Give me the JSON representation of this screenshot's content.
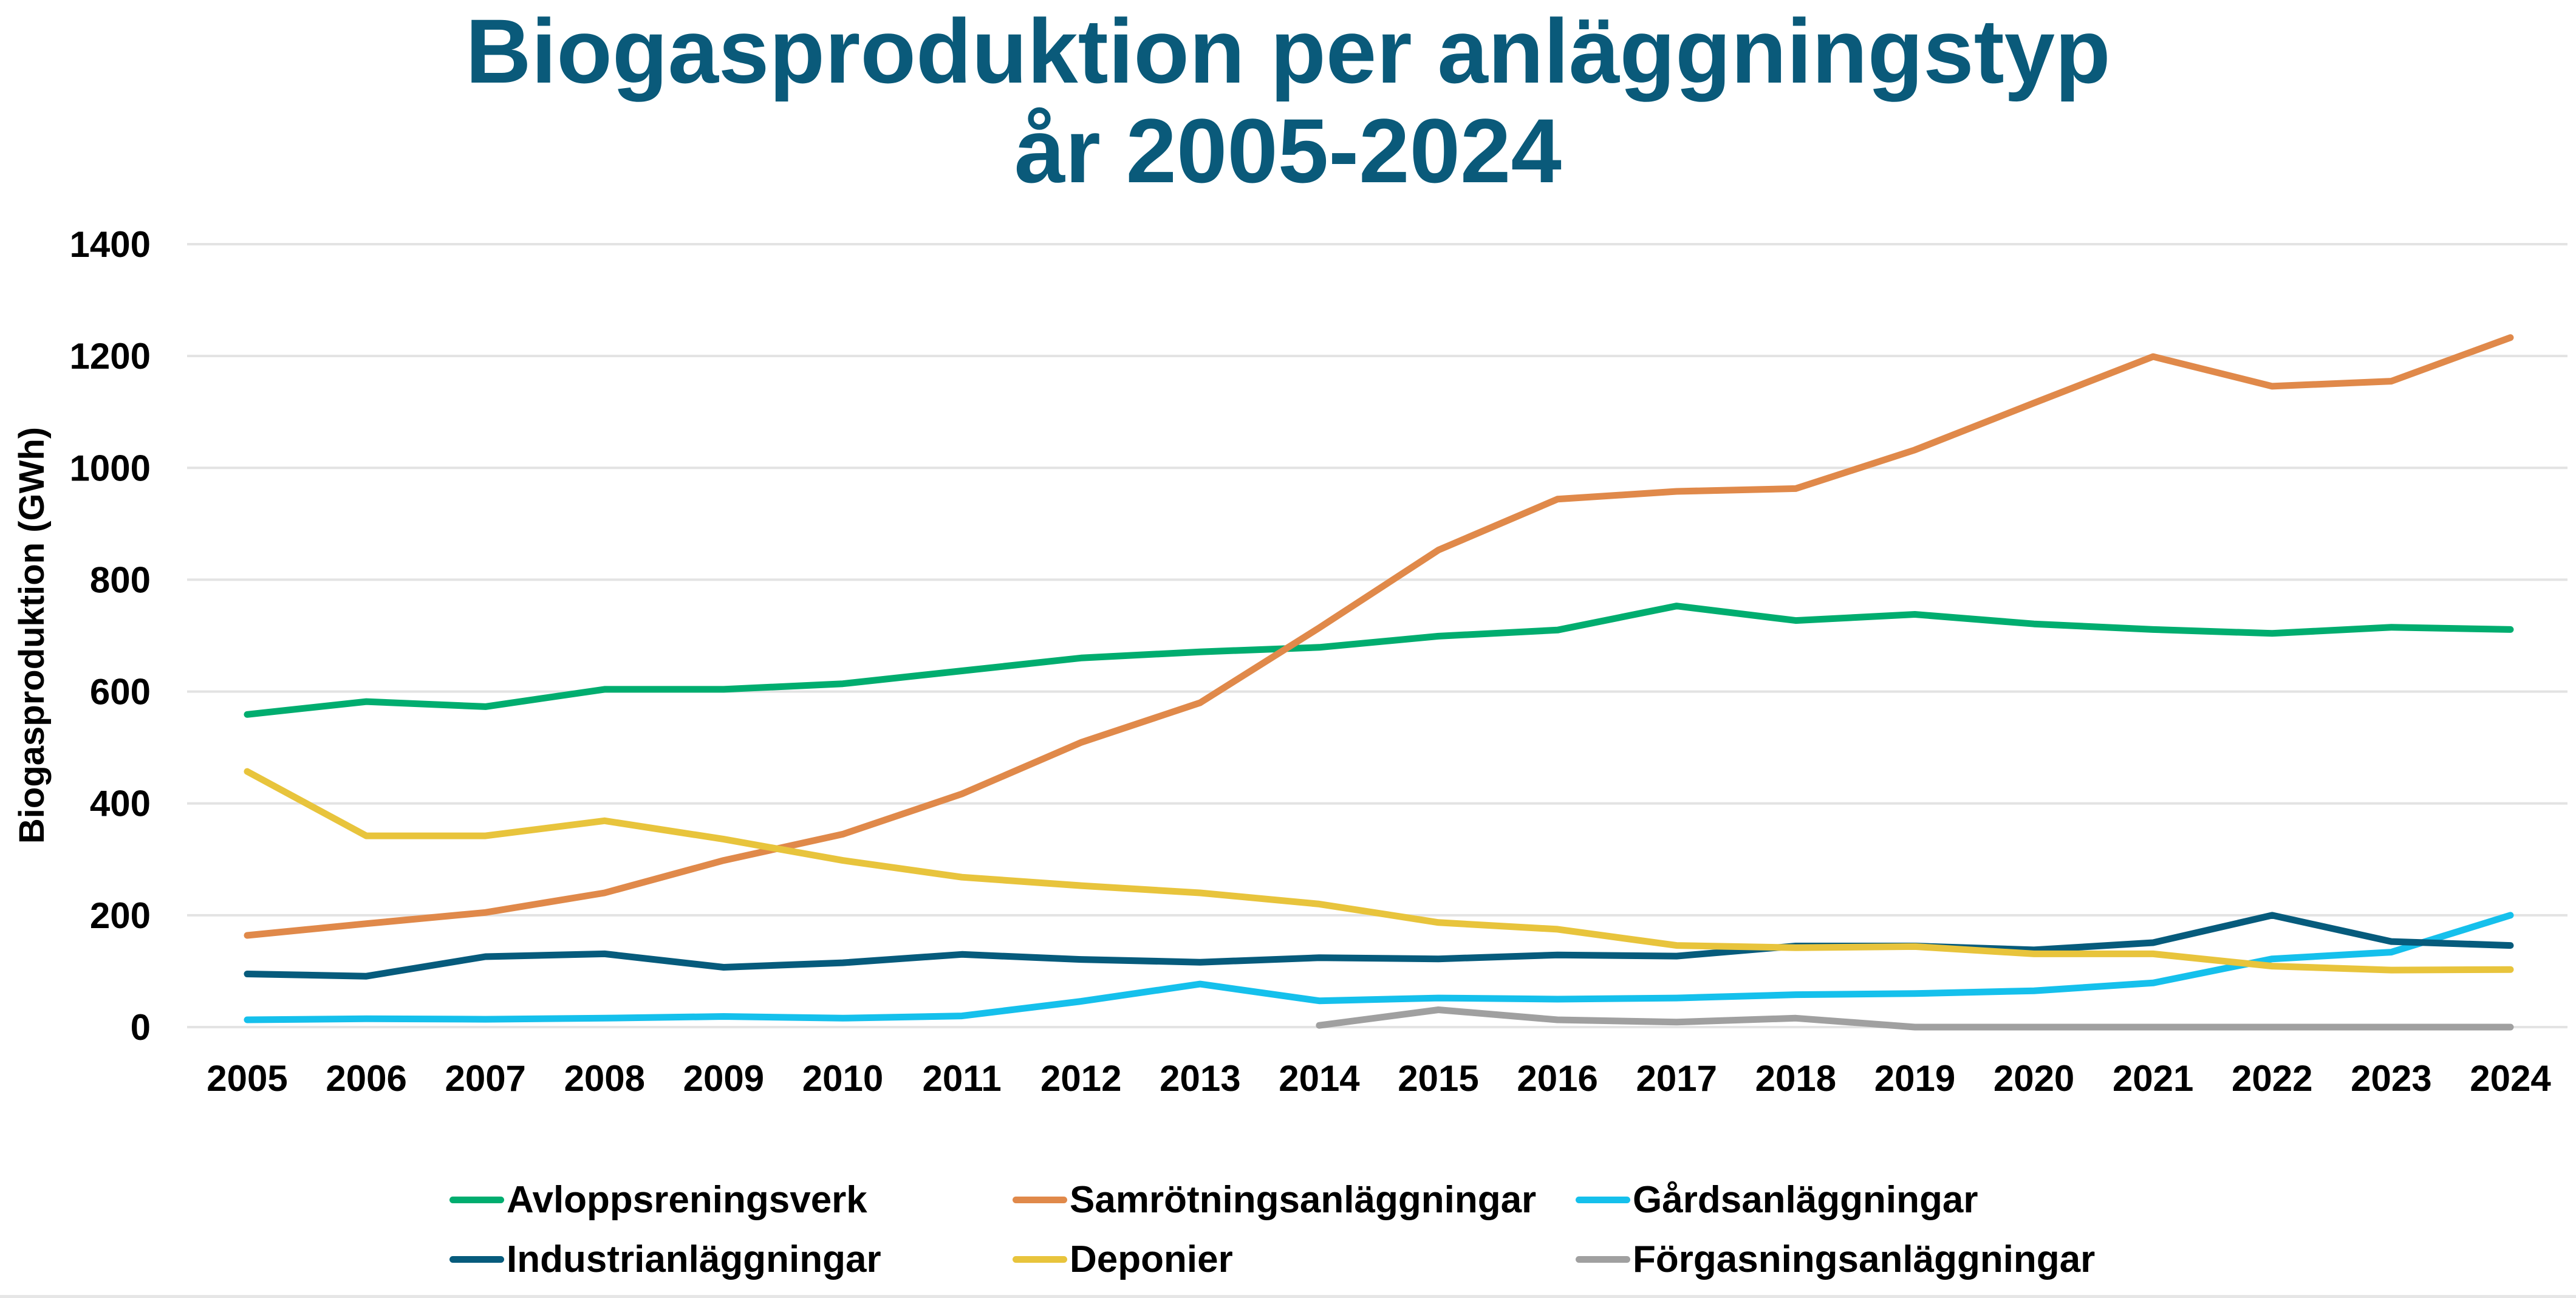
{
  "chart_data": {
    "type": "line",
    "title": "Biogasproduktion per anläggningstyp",
    "subtitle": "år 2005-2024",
    "xlabel": "",
    "ylabel": "Biogasproduktion (GWh)",
    "ylim": [
      0,
      1400
    ],
    "yticks": [
      0,
      200,
      400,
      600,
      800,
      1000,
      1200,
      1400
    ],
    "ytick_labels": [
      "0",
      "200",
      "400",
      "600",
      "800",
      "1000",
      "1200",
      "1400"
    ],
    "grid": true,
    "legend_position": "bottom",
    "categories": [
      "2005",
      "2006",
      "2007",
      "2008",
      "2009",
      "2010",
      "2011",
      "2012",
      "2013",
      "2014",
      "2015",
      "2016",
      "2017",
      "2018",
      "2019",
      "2020",
      "2021",
      "2022",
      "2023",
      "2024"
    ],
    "series": [
      {
        "name": "Avloppsreningsverk",
        "color": "#00ad6f",
        "values": [
          559,
          582,
          573,
          604,
          604,
          614,
          637,
          660,
          671,
          679,
          699,
          710,
          753,
          727,
          738,
          721,
          711,
          704,
          715,
          711
        ]
      },
      {
        "name": "Samrötningsanläggningar",
        "color": "#e0894a",
        "values": [
          164,
          185,
          205,
          240,
          298,
          345,
          417,
          509,
          580,
          714,
          853,
          944,
          958,
          963,
          1032,
          1116,
          1199,
          1146,
          1155,
          1233
        ]
      },
      {
        "name": "Gårdsanläggningar",
        "color": "#15c0ec",
        "values": [
          13,
          15,
          14,
          16,
          19,
          16,
          20,
          46,
          77,
          47,
          52,
          50,
          52,
          58,
          60,
          65,
          79,
          122,
          134,
          200
        ]
      },
      {
        "name": "Industrianläggningar",
        "color": "#065b7c",
        "values": [
          95,
          91,
          126,
          131,
          107,
          115,
          130,
          121,
          116,
          124,
          122,
          129,
          127,
          145,
          145,
          138,
          151,
          200,
          153,
          146
        ]
      },
      {
        "name": "Deponier",
        "color": "#e8c43c",
        "values": [
          457,
          342,
          342,
          369,
          336,
          298,
          268,
          253,
          240,
          220,
          187,
          175,
          146,
          142,
          144,
          131,
          131,
          109,
          102,
          103
        ]
      },
      {
        "name": "Förgasningsanläggningar",
        "color": "#a0a0a0",
        "values": [
          null,
          null,
          null,
          null,
          null,
          null,
          null,
          null,
          null,
          3,
          31,
          13,
          9,
          16,
          0,
          0,
          0,
          0,
          0,
          0
        ]
      }
    ]
  }
}
